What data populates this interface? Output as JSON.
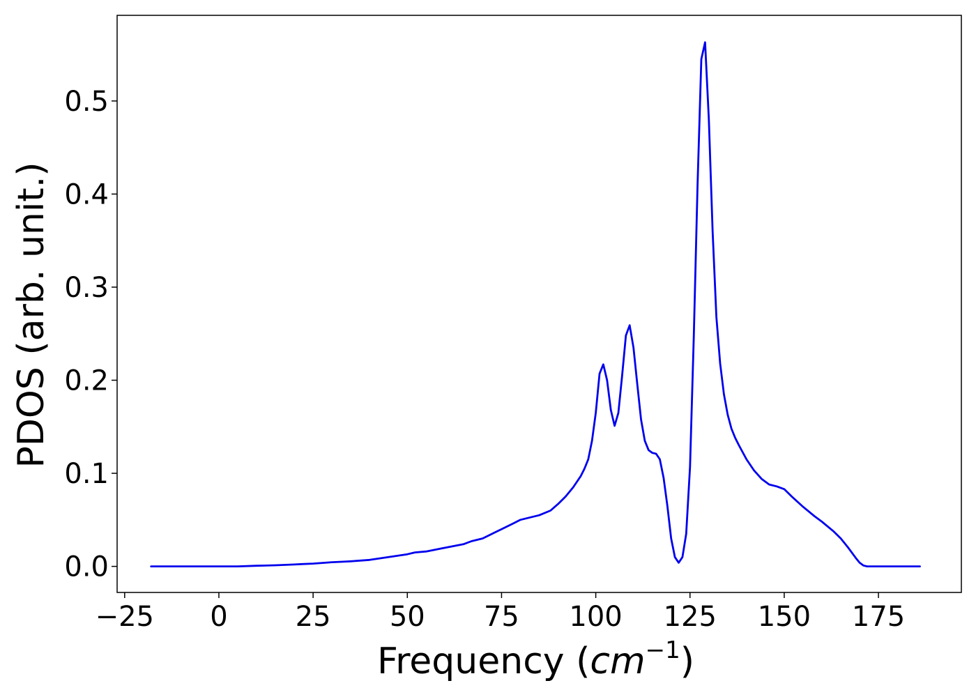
{
  "chart_data": {
    "type": "line",
    "title": "",
    "xlabel": "Frequency (",
    "xlabel_math": "cm",
    "xlabel_superscript": "−1",
    "xlabel_close": ")",
    "ylabel": "PDOS (arb. unit.)",
    "xlim": [
      -27,
      197
    ],
    "ylim": [
      -0.028,
      0.592
    ],
    "xticks": [
      -25,
      0,
      25,
      50,
      75,
      100,
      125,
      150,
      175
    ],
    "xtick_labels": [
      "−25",
      "0",
      "25",
      "50",
      "75",
      "100",
      "125",
      "150",
      "175"
    ],
    "yticks": [
      0.0,
      0.1,
      0.2,
      0.3,
      0.4,
      0.5
    ],
    "ytick_labels": [
      "0.0",
      "0.1",
      "0.2",
      "0.3",
      "0.4",
      "0.5"
    ],
    "grid": false,
    "legend": "none",
    "series": [
      {
        "color": "#0000ee",
        "x": [
          -18,
          -10,
          0,
          5,
          10,
          15,
          20,
          22,
          25,
          30,
          33,
          35,
          40,
          45,
          50,
          52,
          55,
          60,
          65,
          67,
          70,
          73,
          75,
          78,
          80,
          83,
          85,
          88,
          90,
          92,
          94,
          96,
          97,
          98,
          99,
          100,
          101,
          102,
          103,
          104,
          105,
          106,
          107,
          108,
          109,
          110,
          111,
          112,
          113,
          114,
          115,
          116,
          117,
          118,
          119,
          120,
          121,
          122,
          123,
          124,
          125,
          126,
          127,
          128,
          129,
          130,
          131,
          132,
          133,
          134,
          135,
          136,
          137,
          138,
          140,
          142,
          144,
          146,
          148,
          150,
          152,
          155,
          158,
          160,
          163,
          165,
          167,
          169,
          170,
          171,
          172,
          175,
          180,
          186
        ],
        "y": [
          0.0,
          0.0,
          0.0,
          0.0,
          0.0007,
          0.0012,
          0.002,
          0.0025,
          0.003,
          0.0045,
          0.005,
          0.0055,
          0.007,
          0.01,
          0.013,
          0.015,
          0.016,
          0.02,
          0.024,
          0.027,
          0.03,
          0.036,
          0.04,
          0.046,
          0.05,
          0.053,
          0.055,
          0.06,
          0.067,
          0.075,
          0.085,
          0.097,
          0.105,
          0.115,
          0.135,
          0.165,
          0.207,
          0.217,
          0.2,
          0.168,
          0.151,
          0.165,
          0.205,
          0.248,
          0.259,
          0.235,
          0.196,
          0.158,
          0.135,
          0.125,
          0.122,
          0.121,
          0.115,
          0.095,
          0.065,
          0.03,
          0.01,
          0.004,
          0.01,
          0.035,
          0.107,
          0.247,
          0.41,
          0.545,
          0.563,
          0.48,
          0.36,
          0.268,
          0.218,
          0.185,
          0.163,
          0.148,
          0.138,
          0.13,
          0.115,
          0.103,
          0.094,
          0.088,
          0.086,
          0.083,
          0.075,
          0.064,
          0.054,
          0.048,
          0.038,
          0.03,
          0.02,
          0.009,
          0.004,
          0.001,
          0.0,
          0.0,
          0.0,
          0.0
        ]
      }
    ]
  }
}
